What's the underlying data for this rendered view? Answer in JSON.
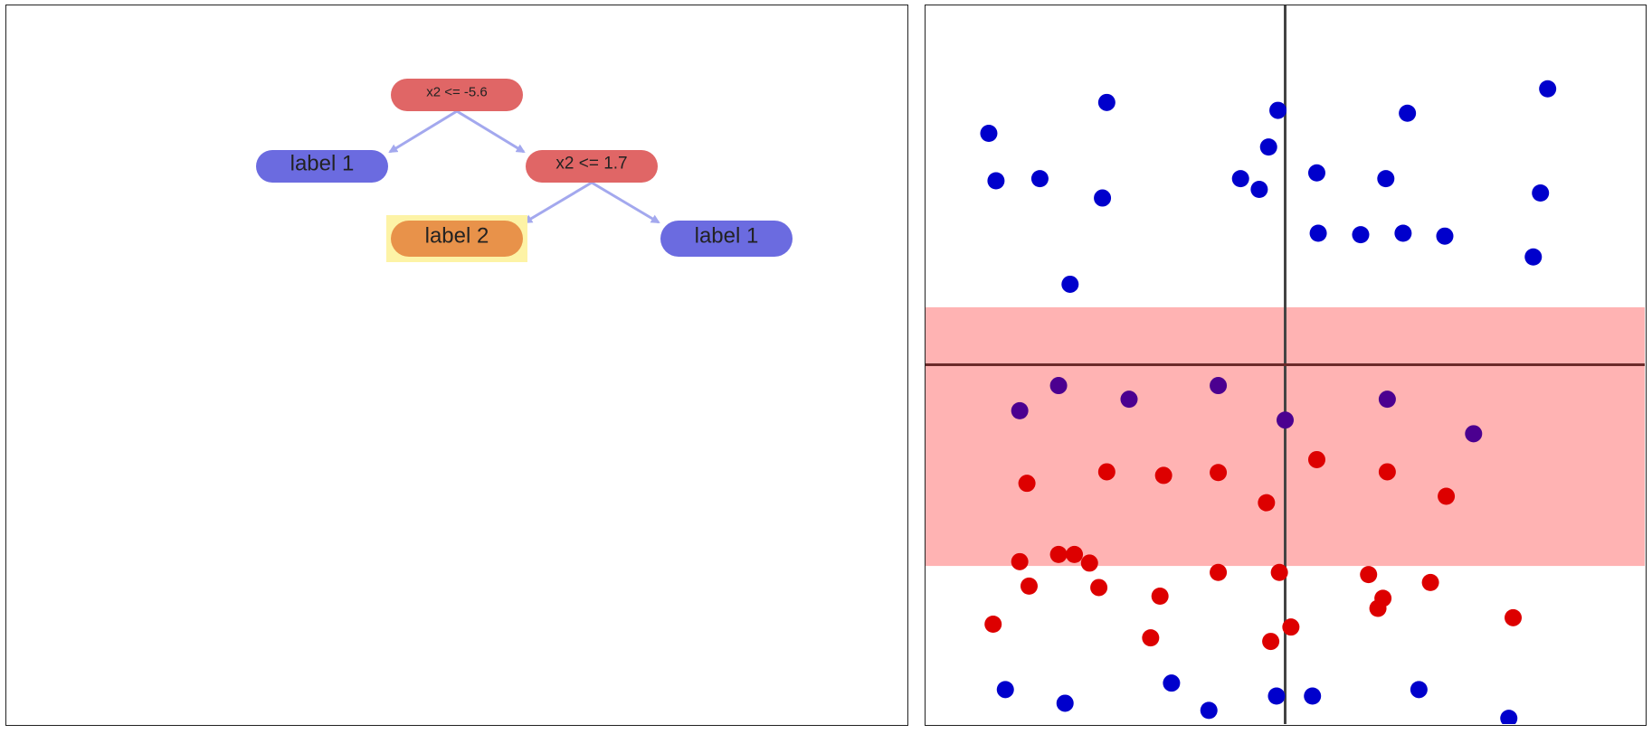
{
  "tree": {
    "nodes": [
      {
        "id": "root",
        "label": "x2 <= -5.6",
        "kind": "split",
        "color": "#e06666"
      },
      {
        "id": "leaf-a",
        "label": "label 1",
        "kind": "leaf",
        "color": "#6b6be0"
      },
      {
        "id": "split-b",
        "label": "x2 <= 1.7",
        "kind": "split",
        "color": "#e06666"
      },
      {
        "id": "leaf-c",
        "label": "label 2",
        "kind": "leaf",
        "color": "#e8924a",
        "highlighted": true,
        "highlight_color": "#fdf3a6"
      },
      {
        "id": "leaf-d",
        "label": "label 1",
        "kind": "leaf",
        "color": "#6b6be0"
      }
    ],
    "edges": [
      {
        "from": "root",
        "to": "leaf-a"
      },
      {
        "from": "root",
        "to": "split-b"
      },
      {
        "from": "split-b",
        "to": "leaf-c"
      },
      {
        "from": "split-b",
        "to": "leaf-d"
      }
    ],
    "edge_color": "#a3a8ee"
  },
  "scatter": {
    "xlim": [
      0,
      100
    ],
    "ylim": [
      0,
      100
    ],
    "vertical_line_x": 50,
    "horizontal_line_y": 50,
    "band": {
      "y_from": 22,
      "y_to": 58,
      "color": "#ffb3b3"
    },
    "colors": {
      "label1": "#0000cc",
      "label2": "#dd0000",
      "mixed": "#4b0090",
      "line": "#444444"
    },
    "points": [
      {
        "x": 8.8,
        "y": 82.2,
        "c": "label1"
      },
      {
        "x": 25.2,
        "y": 86.5,
        "c": "label1"
      },
      {
        "x": 49,
        "y": 85.4,
        "c": "label1"
      },
      {
        "x": 67,
        "y": 85,
        "c": "label1"
      },
      {
        "x": 86.5,
        "y": 88.4,
        "c": "label1"
      },
      {
        "x": 47.7,
        "y": 80.3,
        "c": "label1"
      },
      {
        "x": 9.8,
        "y": 75.6,
        "c": "label1"
      },
      {
        "x": 15.9,
        "y": 75.9,
        "c": "label1"
      },
      {
        "x": 24.6,
        "y": 73.2,
        "c": "label1"
      },
      {
        "x": 43.8,
        "y": 75.9,
        "c": "label1"
      },
      {
        "x": 46.4,
        "y": 74.4,
        "c": "label1"
      },
      {
        "x": 54.4,
        "y": 76.7,
        "c": "label1"
      },
      {
        "x": 64,
        "y": 75.9,
        "c": "label1"
      },
      {
        "x": 85.5,
        "y": 73.9,
        "c": "label1"
      },
      {
        "x": 54.6,
        "y": 68.3,
        "c": "label1"
      },
      {
        "x": 60.5,
        "y": 68.1,
        "c": "label1"
      },
      {
        "x": 66.4,
        "y": 68.3,
        "c": "label1"
      },
      {
        "x": 72.2,
        "y": 67.9,
        "c": "label1"
      },
      {
        "x": 84.5,
        "y": 65,
        "c": "label1"
      },
      {
        "x": 20.1,
        "y": 61.2,
        "c": "label1"
      },
      {
        "x": 18.5,
        "y": 47.1,
        "c": "mixed"
      },
      {
        "x": 13.1,
        "y": 43.6,
        "c": "mixed"
      },
      {
        "x": 28.3,
        "y": 45.2,
        "c": "mixed"
      },
      {
        "x": 40.7,
        "y": 47.1,
        "c": "mixed"
      },
      {
        "x": 64.2,
        "y": 45.2,
        "c": "mixed"
      },
      {
        "x": 50,
        "y": 42.3,
        "c": "mixed"
      },
      {
        "x": 76.2,
        "y": 40.4,
        "c": "mixed"
      },
      {
        "x": 25.2,
        "y": 35.1,
        "c": "label2"
      },
      {
        "x": 33.1,
        "y": 34.6,
        "c": "label2"
      },
      {
        "x": 40.7,
        "y": 35,
        "c": "label2"
      },
      {
        "x": 54.4,
        "y": 36.8,
        "c": "label2"
      },
      {
        "x": 64.2,
        "y": 35.1,
        "c": "label2"
      },
      {
        "x": 14.1,
        "y": 33.5,
        "c": "label2"
      },
      {
        "x": 47.4,
        "y": 30.8,
        "c": "label2"
      },
      {
        "x": 72.4,
        "y": 31.7,
        "c": "label2"
      },
      {
        "x": 13.1,
        "y": 22.6,
        "c": "label2"
      },
      {
        "x": 18.5,
        "y": 23.6,
        "c": "label2"
      },
      {
        "x": 20.7,
        "y": 23.6,
        "c": "label2"
      },
      {
        "x": 22.8,
        "y": 22.4,
        "c": "label2"
      },
      {
        "x": 40.7,
        "y": 21.1,
        "c": "label2"
      },
      {
        "x": 49.2,
        "y": 21.1,
        "c": "label2"
      },
      {
        "x": 61.6,
        "y": 20.8,
        "c": "label2"
      },
      {
        "x": 14.4,
        "y": 19.2,
        "c": "label2"
      },
      {
        "x": 24.1,
        "y": 19,
        "c": "label2"
      },
      {
        "x": 32.6,
        "y": 17.8,
        "c": "label2"
      },
      {
        "x": 70.2,
        "y": 19.7,
        "c": "label2"
      },
      {
        "x": 63.6,
        "y": 17.5,
        "c": "label2"
      },
      {
        "x": 62.9,
        "y": 16.1,
        "c": "label2"
      },
      {
        "x": 9.4,
        "y": 13.9,
        "c": "label2"
      },
      {
        "x": 31.3,
        "y": 12,
        "c": "label2"
      },
      {
        "x": 48,
        "y": 11.5,
        "c": "label2"
      },
      {
        "x": 50.8,
        "y": 13.5,
        "c": "label2"
      },
      {
        "x": 81.7,
        "y": 14.8,
        "c": "label2"
      },
      {
        "x": 11.1,
        "y": 4.8,
        "c": "label1"
      },
      {
        "x": 19.4,
        "y": 2.9,
        "c": "label1"
      },
      {
        "x": 34.2,
        "y": 5.7,
        "c": "label1"
      },
      {
        "x": 39.4,
        "y": 1.9,
        "c": "label1"
      },
      {
        "x": 48.8,
        "y": 3.9,
        "c": "label1"
      },
      {
        "x": 53.8,
        "y": 3.9,
        "c": "label1"
      },
      {
        "x": 68.6,
        "y": 4.8,
        "c": "label1"
      },
      {
        "x": 81.1,
        "y": 0.8,
        "c": "label1"
      }
    ]
  }
}
